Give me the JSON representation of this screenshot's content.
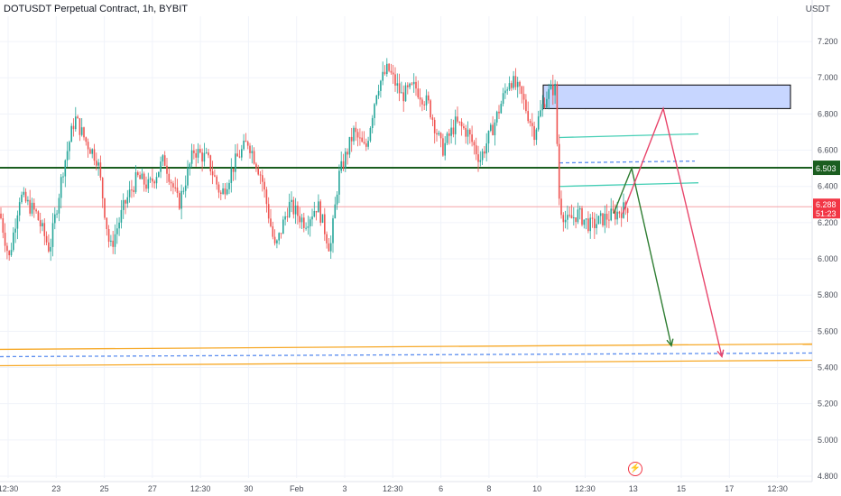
{
  "header": {
    "title": "DOTUSDT Perpetual Contract, 1h, BYBIT"
  },
  "chart_data": {
    "type": "candlestick",
    "title": "DOTUSDT Perpetual Contract, 1h, BYBIT",
    "unit": "USDT",
    "ylim": [
      4.8,
      7.3
    ],
    "y_ticks": [
      "7.200",
      "7.000",
      "6.800",
      "6.600",
      "6.400",
      "6.200",
      "6.000",
      "5.800",
      "5.600",
      "5.400",
      "5.200",
      "5.000",
      "4.800"
    ],
    "x_ticks": [
      "12:30",
      "23",
      "25",
      "27",
      "12:30",
      "30",
      "Feb",
      "3",
      "12:30",
      "6",
      "8",
      "10",
      "12:30",
      "13",
      "15",
      "17",
      "12:30"
    ],
    "current_price": {
      "value": "6.288",
      "timer": "51:23",
      "color": "#f23645"
    },
    "level_label": {
      "value": "6.503",
      "color": "#1b5e20"
    },
    "price_path": [
      [
        0,
        6.25
      ],
      [
        10,
        6.0
      ],
      [
        22,
        6.35
      ],
      [
        40,
        6.25
      ],
      [
        55,
        6.05
      ],
      [
        70,
        6.5
      ],
      [
        83,
        6.78
      ],
      [
        95,
        6.65
      ],
      [
        108,
        6.55
      ],
      [
        122,
        6.05
      ],
      [
        138,
        6.3
      ],
      [
        152,
        6.45
      ],
      [
        165,
        6.4
      ],
      [
        182,
        6.55
      ],
      [
        198,
        6.3
      ],
      [
        215,
        6.6
      ],
      [
        230,
        6.55
      ],
      [
        245,
        6.35
      ],
      [
        262,
        6.55
      ],
      [
        275,
        6.65
      ],
      [
        290,
        6.45
      ],
      [
        305,
        6.05
      ],
      [
        320,
        6.3
      ],
      [
        338,
        6.2
      ],
      [
        352,
        6.3
      ],
      [
        366,
        6.05
      ],
      [
        375,
        6.45
      ],
      [
        392,
        6.7
      ],
      [
        405,
        6.6
      ],
      [
        418,
        6.95
      ],
      [
        430,
        7.05
      ],
      [
        445,
        6.9
      ],
      [
        460,
        6.95
      ],
      [
        475,
        6.85
      ],
      [
        490,
        6.6
      ],
      [
        505,
        6.75
      ],
      [
        518,
        6.7
      ],
      [
        532,
        6.55
      ],
      [
        548,
        6.75
      ],
      [
        565,
        7.0
      ],
      [
        578,
        6.9
      ],
      [
        592,
        6.7
      ],
      [
        605,
        6.9
      ],
      [
        615,
        6.95
      ],
      [
        620,
        6.3
      ],
      [
        628,
        6.2
      ],
      [
        640,
        6.25
      ],
      [
        655,
        6.18
      ],
      [
        668,
        6.22
      ],
      [
        682,
        6.25
      ],
      [
        696,
        6.29
      ]
    ],
    "annotations": [
      {
        "kind": "rect",
        "x0": 602,
        "x1": 876,
        "y0": 6.96,
        "y1": 6.83,
        "fill": "#c7d6ff",
        "stroke": "#000000"
      },
      {
        "kind": "hline",
        "y": 6.503,
        "color": "#1b5e20"
      },
      {
        "kind": "hline",
        "y": 6.288,
        "color": "#f5a3a8"
      },
      {
        "kind": "segment",
        "x0": 620,
        "x1": 774,
        "y0a": 6.67,
        "y0b": 6.69,
        "color": "#46cfb5"
      },
      {
        "kind": "segment",
        "x0": 620,
        "x1": 770,
        "y0a": 6.53,
        "y0b": 6.54,
        "color": "#5b8def",
        "dashed": true
      },
      {
        "kind": "segment",
        "x0": 620,
        "x1": 774,
        "y0a": 6.4,
        "y0b": 6.42,
        "color": "#46cfb5"
      },
      {
        "kind": "segment",
        "x0": 0,
        "x1": 900,
        "y0a": 5.5,
        "y0b": 5.53,
        "color": "#f7a928"
      },
      {
        "kind": "segment",
        "x0": 0,
        "x1": 900,
        "y0a": 5.46,
        "y0b": 5.48,
        "color": "#5b8def",
        "dashed": true
      },
      {
        "kind": "segment",
        "x0": 0,
        "x1": 900,
        "y0a": 5.41,
        "y0b": 5.44,
        "color": "#f7a928"
      }
    ],
    "paths": [
      {
        "name": "green-projection",
        "color": "#2e7d32",
        "points": [
          [
            680,
            6.25
          ],
          [
            700,
            6.5
          ],
          [
            744,
            5.52
          ]
        ]
      },
      {
        "name": "red-projection",
        "color": "#e8456b",
        "points": [
          [
            690,
            6.25
          ],
          [
            735,
            6.83
          ],
          [
            800,
            5.46
          ]
        ]
      }
    ]
  }
}
